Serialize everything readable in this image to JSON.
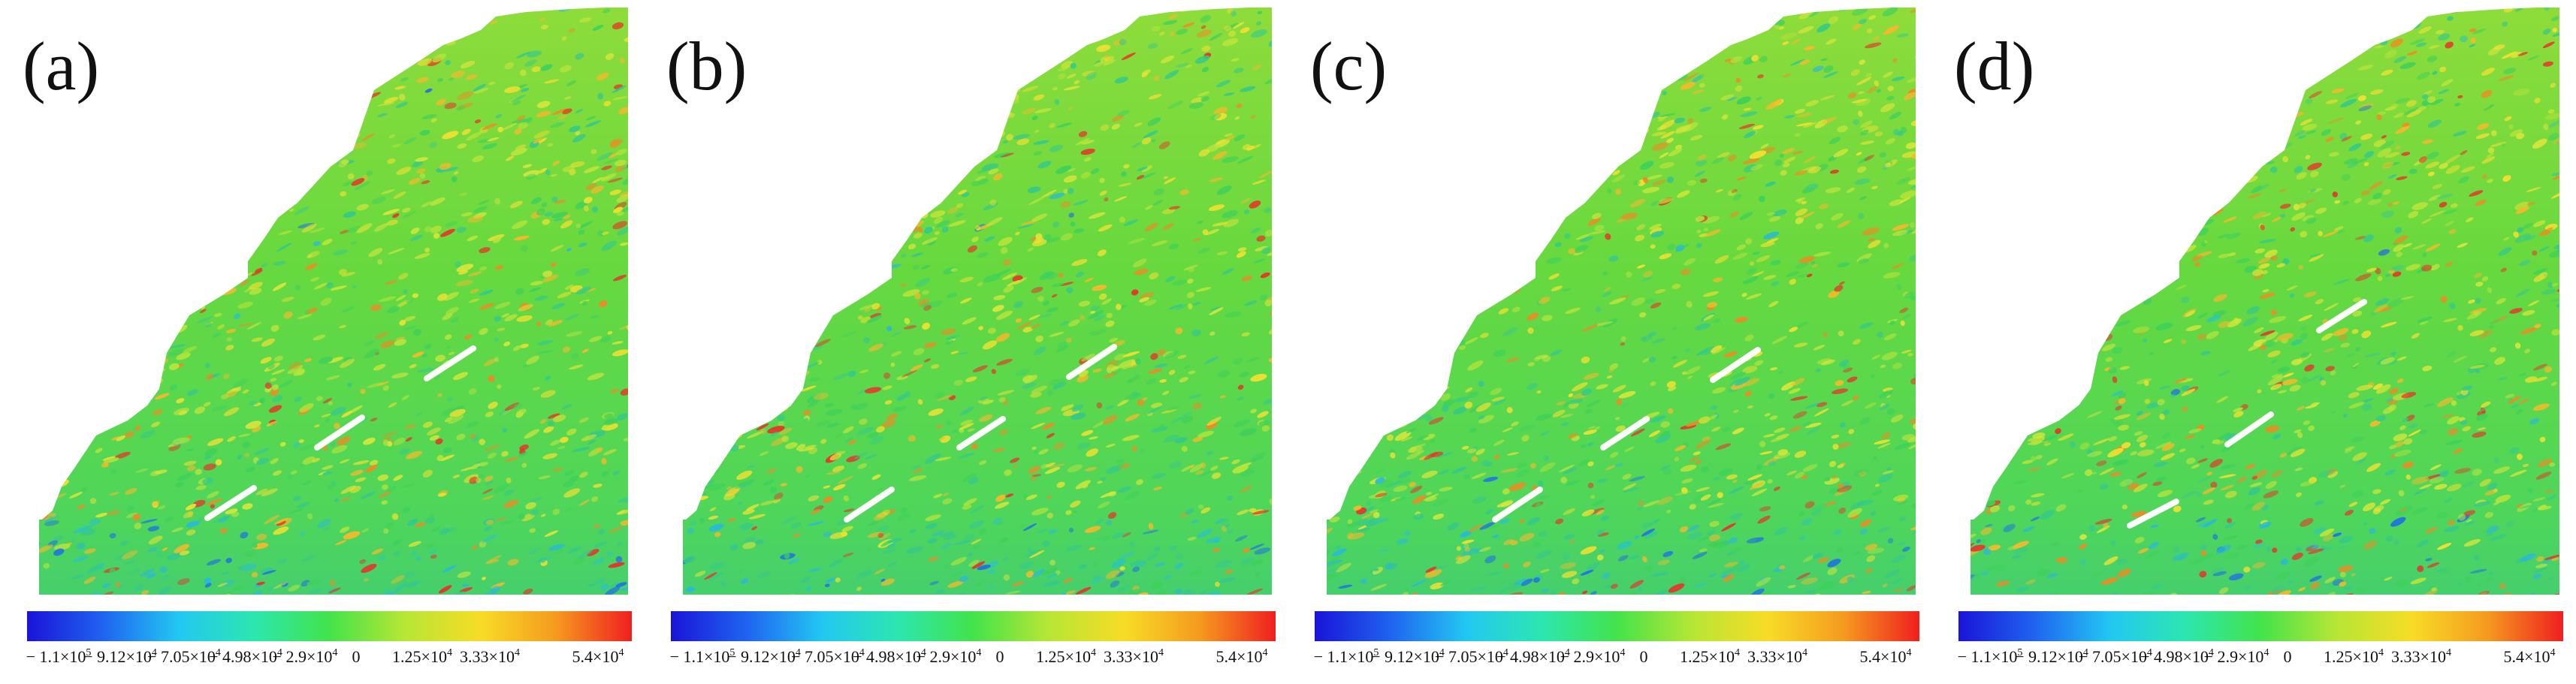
{
  "panels": [
    {
      "label": "(a)"
    },
    {
      "label": "(b)"
    },
    {
      "label": "(c)"
    },
    {
      "label": "(d)"
    }
  ],
  "colorbar": {
    "colors": [
      "#1a14d8",
      "#1f63f0",
      "#23c7f2",
      "#2ce6b0",
      "#43e34b",
      "#b7e635",
      "#f7dc26",
      "#f59a1f",
      "#ef1f1f"
    ],
    "ticks": [
      {
        "mant": "− 1.1×10",
        "exp": "5"
      },
      {
        "mant": "− 9.12×10",
        "exp": "4"
      },
      {
        "mant": "− 7.05×10",
        "exp": "4"
      },
      {
        "mant": "− 4.98×10",
        "exp": "4"
      },
      {
        "mant": "− 2.9×10",
        "exp": "4"
      },
      {
        "mant": "0",
        "exp": ""
      },
      {
        "mant": "1.25×10",
        "exp": "4"
      },
      {
        "mant": "3.33×10",
        "exp": "4"
      },
      {
        "mant": "5.4×10",
        "exp": "4"
      }
    ]
  },
  "colors": {
    "base_green": "#5fd93d",
    "slip_line": "#ffffff"
  }
}
